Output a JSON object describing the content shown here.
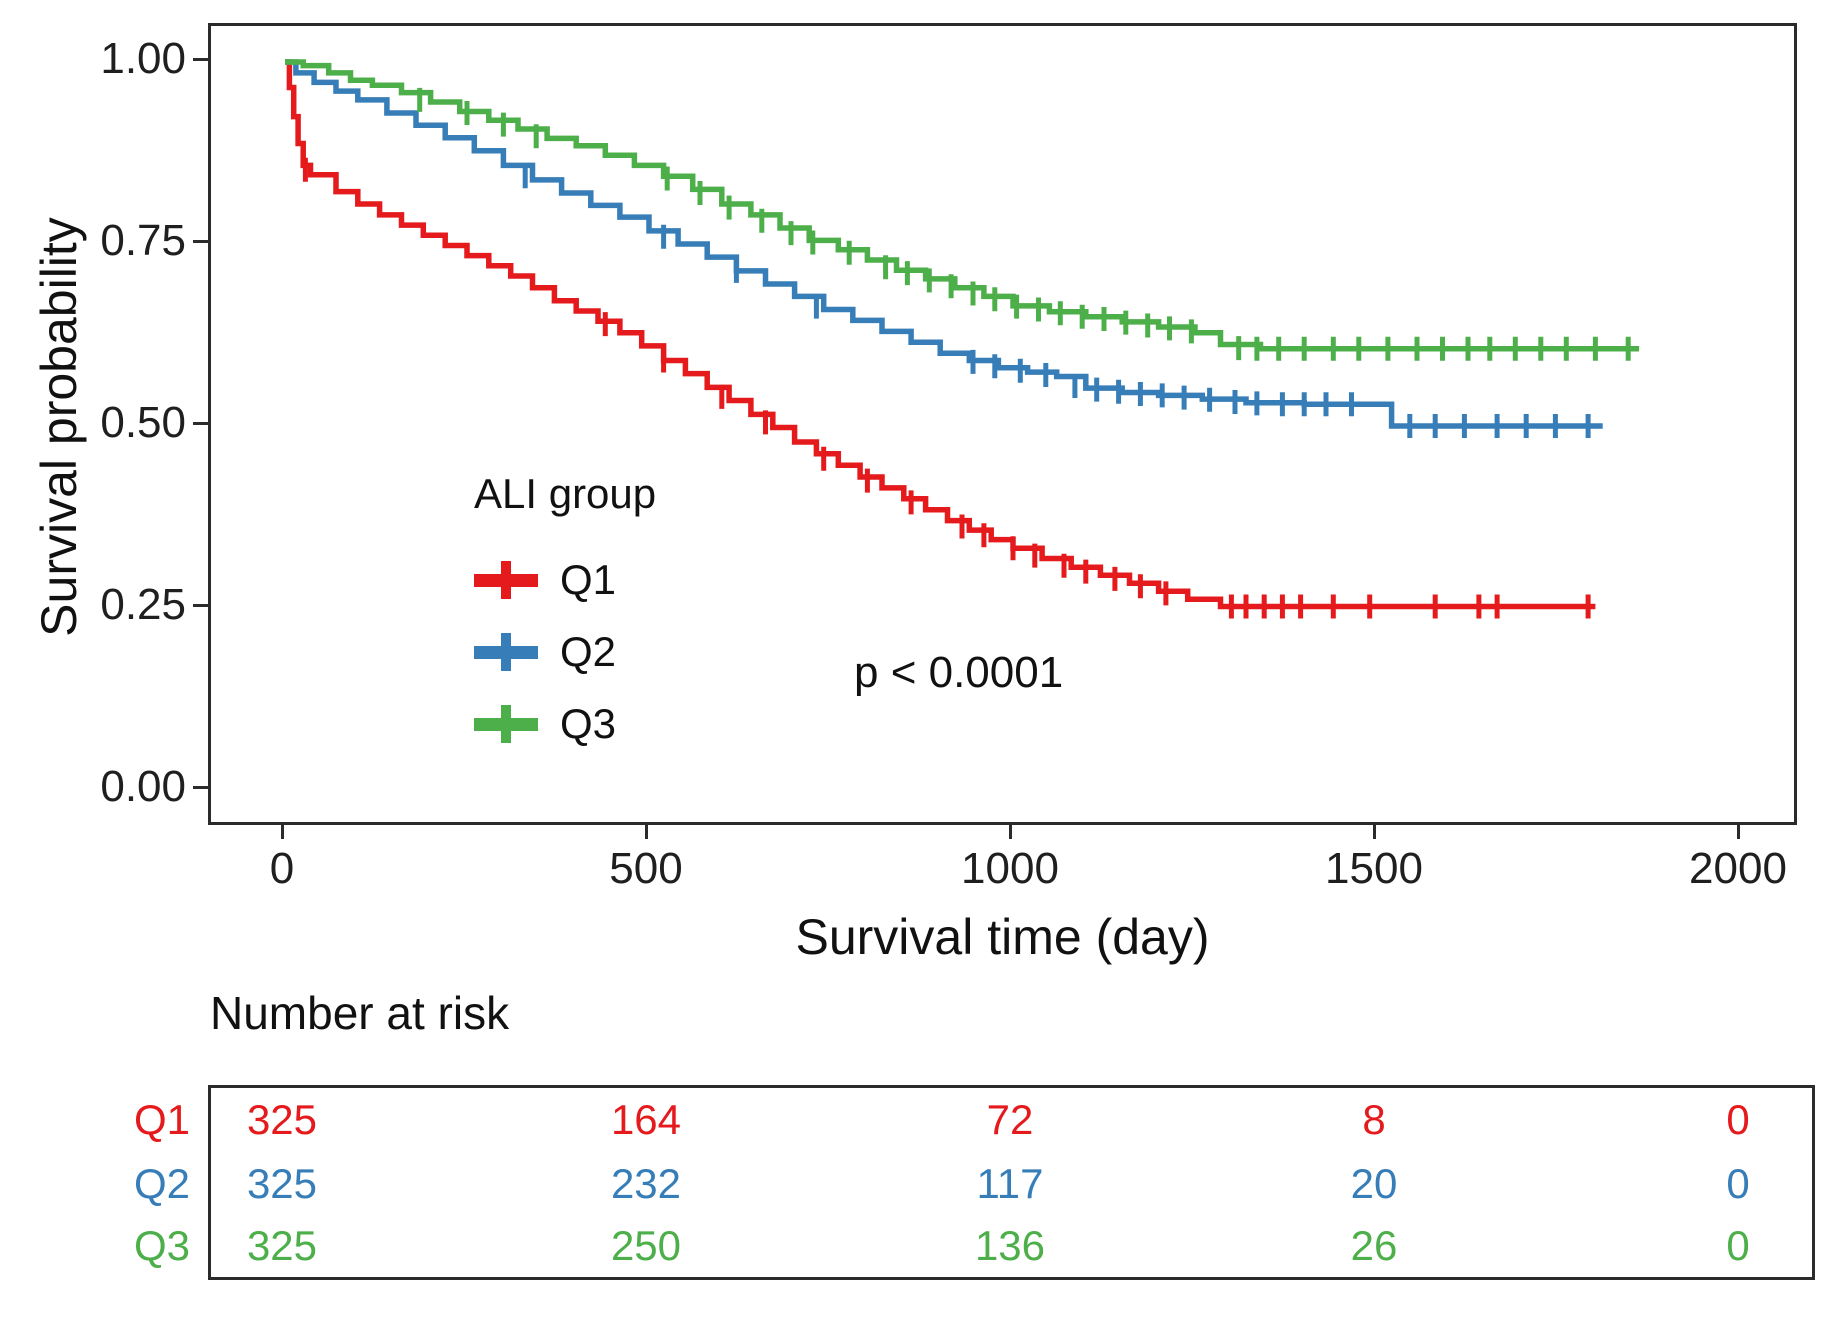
{
  "colors": {
    "q1": "#E41A1C",
    "q2": "#377EB8",
    "q3": "#4DAF4A",
    "axis_line": "#2b2b2b",
    "text": "#1a1a1a"
  },
  "y_axis": {
    "title": "Survival probability",
    "ticks": [
      "1.00",
      "0.75",
      "0.50",
      "0.25",
      "0.00"
    ],
    "tick_values": [
      1.0,
      0.75,
      0.5,
      0.25,
      0.0
    ]
  },
  "x_axis": {
    "title": "Survival time (day)",
    "ticks": [
      "0",
      "500",
      "1000",
      "1500",
      "2000"
    ],
    "tick_values": [
      0,
      500,
      1000,
      1500,
      2000
    ]
  },
  "legend": {
    "title": "ALI group",
    "items": [
      {
        "label": "Q1",
        "color": "#E41A1C"
      },
      {
        "label": "Q2",
        "color": "#377EB8"
      },
      {
        "label": "Q3",
        "color": "#4DAF4A"
      }
    ]
  },
  "annotation": {
    "p_value": "p < 0.0001"
  },
  "risk_table": {
    "title": "Number at risk",
    "time_points": [
      0,
      500,
      1000,
      1500,
      2000
    ],
    "rows": [
      {
        "label": "Q1",
        "color": "#E41A1C",
        "values": [
          "325",
          "164",
          "72",
          "8",
          "0"
        ]
      },
      {
        "label": "Q2",
        "color": "#377EB8",
        "values": [
          "325",
          "232",
          "117",
          "20",
          "0"
        ]
      },
      {
        "label": "Q3",
        "color": "#4DAF4A",
        "values": [
          "325",
          "250",
          "136",
          "26",
          "0"
        ]
      }
    ]
  },
  "chart_data": {
    "type": "line",
    "subtype": "kaplan-meier-step",
    "title": "",
    "xlabel": "Survival time (day)",
    "ylabel": "Survival probability",
    "xlim": [
      0,
      2000
    ],
    "ylim": [
      0,
      1
    ],
    "grid": false,
    "legend_position": "inside-left",
    "series": [
      {
        "name": "Q1",
        "color": "#E41A1C",
        "points": [
          [
            0,
            1.0
          ],
          [
            6,
            0.965
          ],
          [
            12,
            0.925
          ],
          [
            18,
            0.888
          ],
          [
            25,
            0.858
          ],
          [
            35,
            0.845
          ],
          [
            70,
            0.822
          ],
          [
            100,
            0.805
          ],
          [
            130,
            0.79
          ],
          [
            160,
            0.776
          ],
          [
            190,
            0.762
          ],
          [
            220,
            0.748
          ],
          [
            250,
            0.734
          ],
          [
            280,
            0.72
          ],
          [
            310,
            0.706
          ],
          [
            340,
            0.69
          ],
          [
            370,
            0.672
          ],
          [
            400,
            0.658
          ],
          [
            430,
            0.644
          ],
          [
            460,
            0.628
          ],
          [
            490,
            0.61
          ],
          [
            520,
            0.59
          ],
          [
            550,
            0.572
          ],
          [
            580,
            0.553
          ],
          [
            610,
            0.535
          ],
          [
            640,
            0.516
          ],
          [
            670,
            0.498
          ],
          [
            700,
            0.478
          ],
          [
            730,
            0.462
          ],
          [
            760,
            0.446
          ],
          [
            790,
            0.43
          ],
          [
            820,
            0.415
          ],
          [
            850,
            0.4
          ],
          [
            880,
            0.385
          ],
          [
            910,
            0.37
          ],
          [
            940,
            0.357
          ],
          [
            970,
            0.344
          ],
          [
            1000,
            0.332
          ],
          [
            1040,
            0.318
          ],
          [
            1080,
            0.306
          ],
          [
            1120,
            0.295
          ],
          [
            1160,
            0.284
          ],
          [
            1200,
            0.273
          ],
          [
            1240,
            0.262
          ],
          [
            1285,
            0.252
          ],
          [
            1800,
            0.252
          ]
        ],
        "censors": [
          [
            28,
            0.852
          ],
          [
            440,
            0.64
          ],
          [
            520,
            0.59
          ],
          [
            600,
            0.54
          ],
          [
            660,
            0.505
          ],
          [
            740,
            0.455
          ],
          [
            800,
            0.425
          ],
          [
            860,
            0.395
          ],
          [
            930,
            0.362
          ],
          [
            960,
            0.35
          ],
          [
            1000,
            0.332
          ],
          [
            1030,
            0.322
          ],
          [
            1070,
            0.308
          ],
          [
            1100,
            0.3
          ],
          [
            1140,
            0.29
          ],
          [
            1175,
            0.28
          ],
          [
            1210,
            0.27
          ],
          [
            1300,
            0.252
          ],
          [
            1320,
            0.252
          ],
          [
            1345,
            0.252
          ],
          [
            1370,
            0.252
          ],
          [
            1395,
            0.252
          ],
          [
            1440,
            0.252
          ],
          [
            1490,
            0.252
          ],
          [
            1580,
            0.252
          ],
          [
            1640,
            0.252
          ],
          [
            1665,
            0.252
          ],
          [
            1790,
            0.252
          ]
        ]
      },
      {
        "name": "Q2",
        "color": "#377EB8",
        "points": [
          [
            0,
            1.0
          ],
          [
            15,
            0.985
          ],
          [
            40,
            0.972
          ],
          [
            70,
            0.96
          ],
          [
            100,
            0.948
          ],
          [
            140,
            0.93
          ],
          [
            180,
            0.913
          ],
          [
            220,
            0.896
          ],
          [
            260,
            0.878
          ],
          [
            300,
            0.858
          ],
          [
            340,
            0.838
          ],
          [
            380,
            0.82
          ],
          [
            420,
            0.803
          ],
          [
            460,
            0.787
          ],
          [
            500,
            0.768
          ],
          [
            540,
            0.75
          ],
          [
            580,
            0.732
          ],
          [
            620,
            0.713
          ],
          [
            660,
            0.695
          ],
          [
            700,
            0.678
          ],
          [
            740,
            0.66
          ],
          [
            780,
            0.645
          ],
          [
            820,
            0.63
          ],
          [
            860,
            0.615
          ],
          [
            900,
            0.6
          ],
          [
            940,
            0.59
          ],
          [
            980,
            0.58
          ],
          [
            1020,
            0.574
          ],
          [
            1060,
            0.568
          ],
          [
            1100,
            0.552
          ],
          [
            1150,
            0.546
          ],
          [
            1200,
            0.542
          ],
          [
            1260,
            0.537
          ],
          [
            1320,
            0.532
          ],
          [
            1400,
            0.53
          ],
          [
            1520,
            0.5
          ],
          [
            1810,
            0.5
          ]
        ],
        "censors": [
          [
            330,
            0.843
          ],
          [
            520,
            0.76
          ],
          [
            620,
            0.713
          ],
          [
            730,
            0.664
          ],
          [
            945,
            0.588
          ],
          [
            975,
            0.582
          ],
          [
            1010,
            0.576
          ],
          [
            1045,
            0.57
          ],
          [
            1085,
            0.555
          ],
          [
            1115,
            0.55
          ],
          [
            1145,
            0.547
          ],
          [
            1175,
            0.544
          ],
          [
            1205,
            0.542
          ],
          [
            1235,
            0.539
          ],
          [
            1270,
            0.536
          ],
          [
            1305,
            0.533
          ],
          [
            1335,
            0.531
          ],
          [
            1370,
            0.53
          ],
          [
            1400,
            0.53
          ],
          [
            1430,
            0.53
          ],
          [
            1465,
            0.53
          ],
          [
            1545,
            0.5
          ],
          [
            1580,
            0.5
          ],
          [
            1620,
            0.5
          ],
          [
            1665,
            0.5
          ],
          [
            1705,
            0.5
          ],
          [
            1745,
            0.5
          ],
          [
            1790,
            0.5
          ]
        ]
      },
      {
        "name": "Q3",
        "color": "#4DAF4A",
        "points": [
          [
            0,
            1.0
          ],
          [
            25,
            0.995
          ],
          [
            60,
            0.985
          ],
          [
            90,
            0.975
          ],
          [
            120,
            0.968
          ],
          [
            160,
            0.958
          ],
          [
            200,
            0.945
          ],
          [
            240,
            0.932
          ],
          [
            280,
            0.92
          ],
          [
            320,
            0.908
          ],
          [
            360,
            0.895
          ],
          [
            400,
            0.885
          ],
          [
            440,
            0.872
          ],
          [
            480,
            0.858
          ],
          [
            520,
            0.843
          ],
          [
            560,
            0.825
          ],
          [
            600,
            0.805
          ],
          [
            640,
            0.79
          ],
          [
            680,
            0.772
          ],
          [
            720,
            0.755
          ],
          [
            760,
            0.742
          ],
          [
            800,
            0.728
          ],
          [
            840,
            0.714
          ],
          [
            880,
            0.702
          ],
          [
            920,
            0.69
          ],
          [
            960,
            0.678
          ],
          [
            1000,
            0.665
          ],
          [
            1050,
            0.657
          ],
          [
            1100,
            0.65
          ],
          [
            1150,
            0.643
          ],
          [
            1200,
            0.636
          ],
          [
            1250,
            0.628
          ],
          [
            1285,
            0.612
          ],
          [
            1340,
            0.606
          ],
          [
            1860,
            0.606
          ]
        ],
        "censors": [
          [
            185,
            0.948
          ],
          [
            250,
            0.93
          ],
          [
            300,
            0.914
          ],
          [
            345,
            0.898
          ],
          [
            525,
            0.84
          ],
          [
            570,
            0.82
          ],
          [
            610,
            0.8
          ],
          [
            655,
            0.782
          ],
          [
            695,
            0.765
          ],
          [
            725,
            0.752
          ],
          [
            775,
            0.738
          ],
          [
            825,
            0.718
          ],
          [
            855,
            0.71
          ],
          [
            885,
            0.7
          ],
          [
            915,
            0.692
          ],
          [
            945,
            0.682
          ],
          [
            975,
            0.674
          ],
          [
            1005,
            0.664
          ],
          [
            1035,
            0.66
          ],
          [
            1065,
            0.655
          ],
          [
            1095,
            0.65
          ],
          [
            1125,
            0.647
          ],
          [
            1155,
            0.642
          ],
          [
            1185,
            0.638
          ],
          [
            1215,
            0.634
          ],
          [
            1245,
            0.63
          ],
          [
            1310,
            0.607
          ],
          [
            1335,
            0.606
          ],
          [
            1365,
            0.606
          ],
          [
            1400,
            0.606
          ],
          [
            1440,
            0.606
          ],
          [
            1475,
            0.606
          ],
          [
            1515,
            0.606
          ],
          [
            1555,
            0.606
          ],
          [
            1590,
            0.606
          ],
          [
            1625,
            0.606
          ],
          [
            1655,
            0.606
          ],
          [
            1690,
            0.606
          ],
          [
            1725,
            0.606
          ],
          [
            1760,
            0.606
          ],
          [
            1800,
            0.606
          ],
          [
            1845,
            0.606
          ]
        ]
      }
    ]
  }
}
